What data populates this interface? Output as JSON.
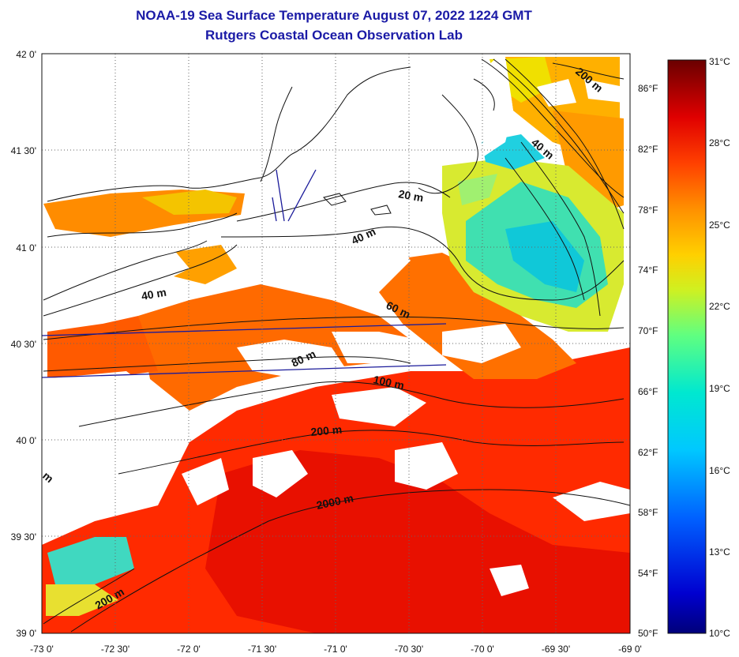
{
  "title": "NOAA-19 Sea Surface Temperature August 07, 2022 1224 GMT",
  "subtitle": "Rutgers Coastal Ocean Observation Lab",
  "colors": {
    "title": "#1a1aa6",
    "coast": "#111111",
    "transect": "#1a1a9a",
    "scale": [
      "#00007a",
      "#0000d0",
      "#0050ff",
      "#00b0ff",
      "#00e8e8",
      "#40ffb0",
      "#a0ff40",
      "#f0f000",
      "#ffc000",
      "#ff7a00",
      "#ff3000",
      "#e00000",
      "#900000",
      "#5a0000"
    ]
  },
  "lat_labels": [
    "42 0'",
    "41 30'",
    "41 0'",
    "40 30'",
    "40 0'",
    "39 30'",
    "39 0'"
  ],
  "lon_labels": [
    "-73 0'",
    "-72 30'",
    "-72 0'",
    "-71 30'",
    "-71 0'",
    "-70 30'",
    "-70 0'",
    "-69 30'",
    "-69 0'"
  ],
  "fahrenheit_labels": [
    "86°F",
    "82°F",
    "78°F",
    "74°F",
    "70°F",
    "66°F",
    "62°F",
    "58°F",
    "54°F",
    "50°F"
  ],
  "colorbar": {
    "celsius_labels": [
      "31°C",
      "28°C",
      "25°C",
      "22°C",
      "19°C",
      "16°C",
      "13°C",
      "10°C"
    ],
    "range_c": [
      10,
      31
    ]
  },
  "contour_labels": [
    "200 m",
    "40 m",
    "20 m",
    "40 m",
    "40 m",
    "60 m",
    "80 m",
    "100 m",
    "200 m",
    "2000 m",
    "200 m",
    "m"
  ]
}
